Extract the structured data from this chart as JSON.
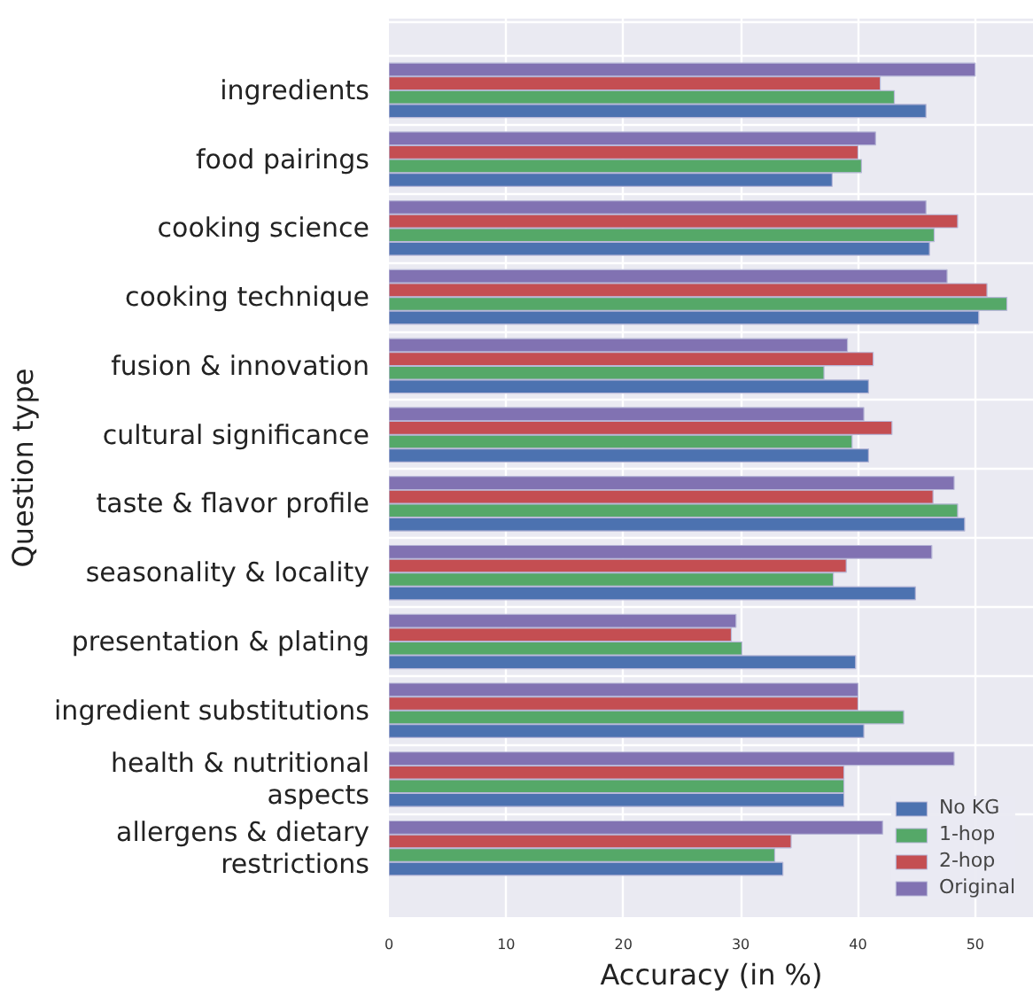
{
  "chart_data": {
    "type": "bar",
    "orientation": "horizontal",
    "xlabel": "Accuracy (in %)",
    "ylabel": "Question type",
    "categories": [
      "ingredients",
      "food pairings",
      "cooking science",
      "cooking technique",
      "fusion & innovation",
      "cultural significance",
      "taste & flavor profile",
      "seasonality & locality",
      "presentation & plating",
      "ingredient substitutions",
      "health & nutritional aspects",
      "allergens & dietary restrictions"
    ],
    "series": [
      {
        "name": "No KG",
        "color": "#4c72b0",
        "values": [
          45.8,
          37.8,
          46.1,
          50.3,
          40.9,
          40.9,
          49.1,
          44.9,
          39.8,
          40.5,
          38.8,
          33.6
        ]
      },
      {
        "name": "1-hop",
        "color": "#55a868",
        "values": [
          43.1,
          40.3,
          46.5,
          52.7,
          37.1,
          39.5,
          48.5,
          37.9,
          30.1,
          43.9,
          38.8,
          32.9
        ]
      },
      {
        "name": "2-hop",
        "color": "#c44e52",
        "values": [
          41.9,
          40.0,
          48.5,
          51.0,
          41.3,
          42.9,
          46.4,
          39.0,
          29.2,
          40.0,
          38.8,
          34.3
        ]
      },
      {
        "name": "Original",
        "color": "#8172b2",
        "values": [
          50.0,
          41.5,
          45.8,
          47.6,
          39.1,
          40.5,
          48.2,
          46.3,
          29.6,
          40.0,
          48.2,
          42.1
        ]
      }
    ],
    "xlim": [
      0,
      55
    ],
    "xticks": [
      0,
      10,
      20,
      30,
      40,
      50
    ],
    "grid": true,
    "legend": "bottom right"
  }
}
